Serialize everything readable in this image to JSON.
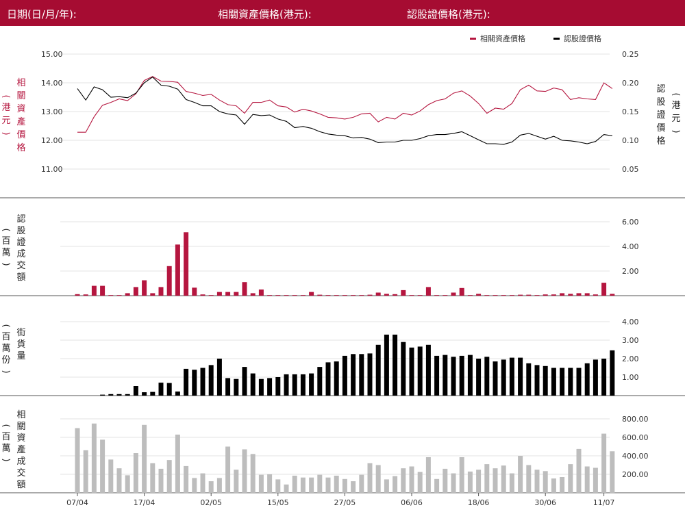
{
  "header": {
    "date_label": "日期(日/月/年):",
    "asset_price_label": "相關資產價格(港元):",
    "warrant_price_label": "認股證價格(港元):"
  },
  "colors": {
    "brand": "#a60c32",
    "asset": "#b5163f",
    "warrant": "#000000",
    "turnover": "#bdbdbd"
  },
  "legend": {
    "asset": "相關資產價格",
    "warrant": "認股證價格"
  },
  "chart_data": [
    {
      "type": "line",
      "title": "",
      "left_axis_label": "相關資產價格",
      "left_axis_unit": "(港元)",
      "right_axis_label": "認股證價格",
      "right_axis_unit": "(港元)",
      "left_ticks": [
        "15.00",
        "14.00",
        "13.00",
        "12.00",
        "11.00"
      ],
      "right_ticks": [
        "0.25",
        "0.20",
        "0.15",
        "0.10",
        "0.05"
      ],
      "left_ylim": [
        10.2,
        15.0
      ],
      "right_ylim": [
        0.02,
        0.25
      ],
      "x_ticks": [
        "07/04",
        "17/04",
        "02/05",
        "15/05",
        "27/05",
        "06/06",
        "18/06",
        "30/06",
        "11/07"
      ],
      "x_tick_index": [
        0,
        8,
        16,
        24,
        32,
        40,
        48,
        56,
        63
      ],
      "series": [
        {
          "name": "相關資產價格",
          "axis": "left",
          "values": [
            12.28,
            12.28,
            12.82,
            13.22,
            13.32,
            13.44,
            13.38,
            13.62,
            14.08,
            14.22,
            14.06,
            14.05,
            14.02,
            13.7,
            13.64,
            13.56,
            13.6,
            13.4,
            13.24,
            13.2,
            12.94,
            13.32,
            13.32,
            13.4,
            13.2,
            13.16,
            12.98,
            13.08,
            13.02,
            12.92,
            12.8,
            12.78,
            12.74,
            12.8,
            12.92,
            12.94,
            12.64,
            12.8,
            12.74,
            12.94,
            12.88,
            13.02,
            13.24,
            13.38,
            13.44,
            13.64,
            13.72,
            13.54,
            13.28,
            12.94,
            13.12,
            13.08,
            13.28,
            13.76,
            13.92,
            13.72,
            13.7,
            13.82,
            13.76,
            13.42,
            13.48,
            13.44,
            13.42,
            14.0,
            13.8
          ]
        },
        {
          "name": "認股證價格",
          "axis": "right",
          "values": [
            0.19,
            0.17,
            0.193,
            0.188,
            0.175,
            0.176,
            0.174,
            0.182,
            0.2,
            0.21,
            0.196,
            0.194,
            0.189,
            0.171,
            0.166,
            0.16,
            0.16,
            0.15,
            0.146,
            0.144,
            0.128,
            0.145,
            0.143,
            0.144,
            0.137,
            0.133,
            0.122,
            0.124,
            0.121,
            0.115,
            0.111,
            0.109,
            0.108,
            0.104,
            0.105,
            0.102,
            0.096,
            0.097,
            0.097,
            0.1,
            0.1,
            0.103,
            0.108,
            0.11,
            0.11,
            0.112,
            0.115,
            0.108,
            0.101,
            0.094,
            0.094,
            0.093,
            0.097,
            0.109,
            0.112,
            0.107,
            0.102,
            0.107,
            0.1,
            0.099,
            0.097,
            0.094,
            0.098,
            0.11,
            0.108
          ]
        }
      ]
    },
    {
      "type": "bar",
      "axis_label": "認股證成交額",
      "axis_unit": "(百萬)",
      "ticks": [
        "6.00",
        "4.00",
        "2.00"
      ],
      "ylim": [
        0,
        6.5
      ],
      "values": [
        0.12,
        0.1,
        0.8,
        0.8,
        0.05,
        0.05,
        0.2,
        0.7,
        1.25,
        0.2,
        0.7,
        2.4,
        4.15,
        5.15,
        0.65,
        0.1,
        0.05,
        0.3,
        0.3,
        0.3,
        1.1,
        0.2,
        0.5,
        0.05,
        0.05,
        0.05,
        0.05,
        0.05,
        0.3,
        0.08,
        0.05,
        0.05,
        0.05,
        0.05,
        0.05,
        0.08,
        0.25,
        0.15,
        0.12,
        0.45,
        0.05,
        0.05,
        0.7,
        0.05,
        0.05,
        0.25,
        0.62,
        0.05,
        0.15,
        0.05,
        0.05,
        0.05,
        0.05,
        0.08,
        0.08,
        0.05,
        0.1,
        0.1,
        0.2,
        0.15,
        0.2,
        0.2,
        0.1,
        1.05,
        0.15
      ]
    },
    {
      "type": "bar",
      "axis_label": "街貨量",
      "axis_unit": "(百萬份)",
      "ticks": [
        "4.00",
        "3.00",
        "2.00",
        "1.00"
      ],
      "ylim": [
        0,
        4.4
      ],
      "values": [
        0,
        0,
        0,
        0.05,
        0.08,
        0.08,
        0.08,
        0.52,
        0.18,
        0.2,
        0.7,
        0.68,
        0.22,
        1.45,
        1.4,
        1.5,
        1.65,
        2.0,
        0.95,
        0.9,
        1.55,
        1.2,
        0.9,
        0.95,
        1.0,
        1.15,
        1.15,
        1.15,
        1.2,
        1.55,
        1.8,
        1.85,
        2.15,
        2.25,
        2.25,
        2.28,
        2.75,
        3.3,
        3.3,
        2.9,
        2.6,
        2.65,
        2.75,
        2.15,
        2.2,
        2.1,
        2.15,
        2.2,
        2.0,
        2.1,
        1.85,
        1.95,
        2.05,
        2.05,
        1.75,
        1.65,
        1.6,
        1.5,
        1.5,
        1.5,
        1.5,
        1.75,
        1.95,
        2.0,
        2.45
      ]
    },
    {
      "type": "bar",
      "axis_label": "相關資產成交額",
      "axis_unit": "(百萬)",
      "ticks": [
        "800.00",
        "600.00",
        "400.00",
        "200.00"
      ],
      "ylim": [
        0,
        870
      ],
      "values": [
        700,
        460,
        750,
        575,
        360,
        265,
        190,
        430,
        735,
        320,
        260,
        355,
        630,
        290,
        160,
        210,
        125,
        160,
        500,
        250,
        470,
        420,
        195,
        200,
        145,
        90,
        185,
        165,
        165,
        195,
        165,
        185,
        150,
        125,
        195,
        320,
        300,
        145,
        180,
        265,
        285,
        225,
        385,
        150,
        260,
        210,
        385,
        230,
        250,
        310,
        265,
        295,
        210,
        400,
        300,
        250,
        235,
        155,
        170,
        310,
        475,
        285,
        270,
        640,
        450
      ]
    }
  ]
}
